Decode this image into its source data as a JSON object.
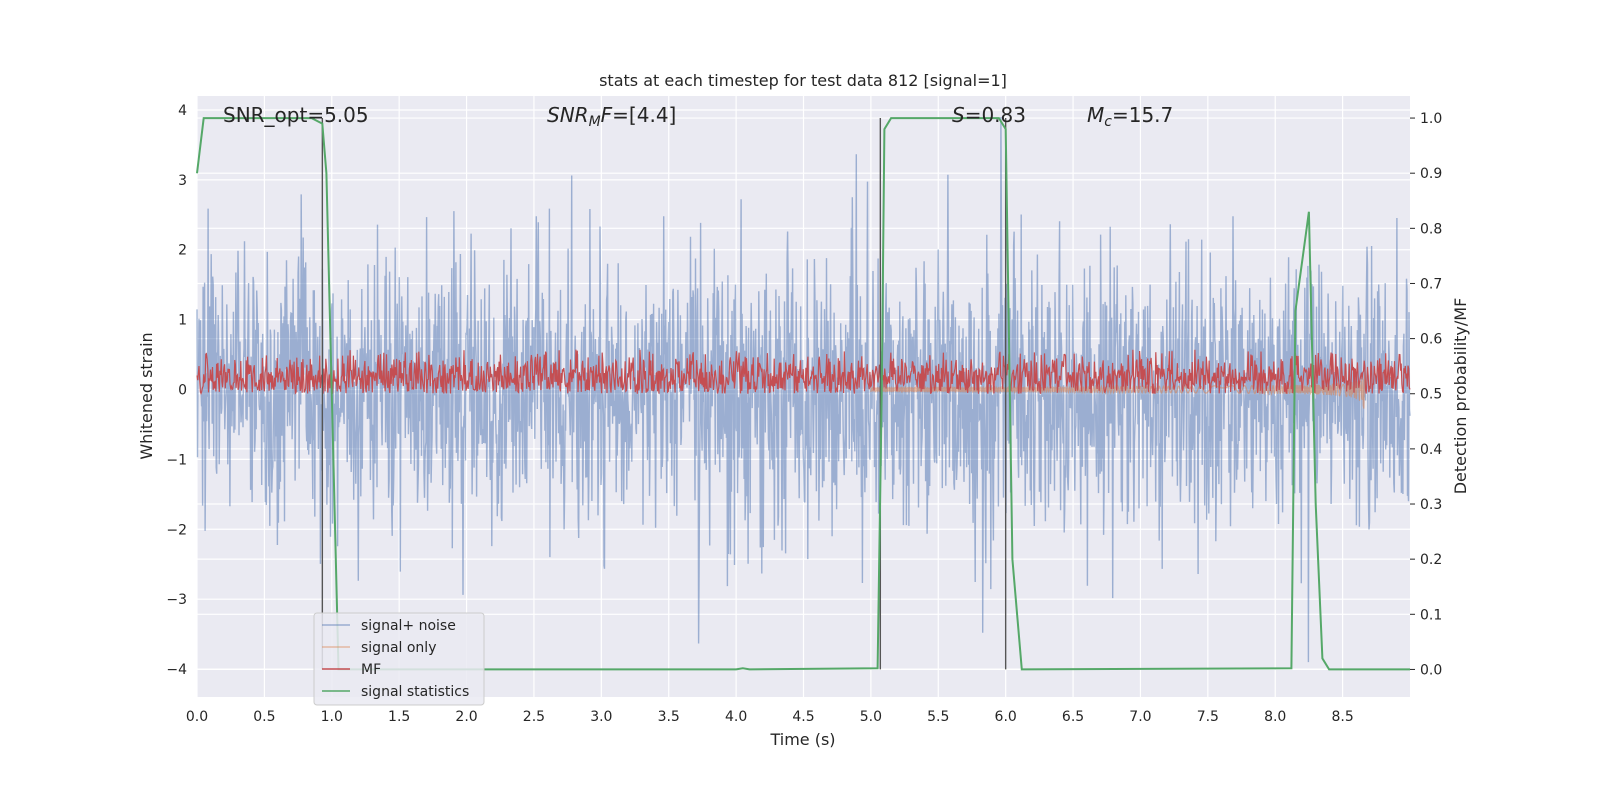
{
  "chart_data": {
    "type": "line",
    "title": "stats at each timestep for test data 812 [signal=1]",
    "xlabel": "Time (s)",
    "ylabel_left": "Whitened strain",
    "ylabel_right": "Detection probability/MF",
    "xlim": [
      0.0,
      9.0
    ],
    "ylim_left": [
      -4.4,
      4.2
    ],
    "ylim_right": [
      -0.05,
      1.04
    ],
    "x_ticks": [
      "0.0",
      "0.5",
      "1.0",
      "1.5",
      "2.0",
      "2.5",
      "3.0",
      "3.5",
      "4.0",
      "4.5",
      "5.0",
      "5.5",
      "6.0",
      "6.5",
      "7.0",
      "7.5",
      "8.0",
      "8.5"
    ],
    "y_left_ticks": [
      "−4",
      "−3",
      "−2",
      "−1",
      "0",
      "1",
      "2",
      "3",
      "4"
    ],
    "y_right_ticks": [
      "0.0",
      "0.1",
      "0.2",
      "0.3",
      "0.4",
      "0.5",
      "0.6",
      "0.7",
      "0.8",
      "0.9",
      "1.0"
    ],
    "grid": true,
    "legend_position": "lower-left",
    "colors": {
      "signal_noise": "#4c72b0",
      "signal_only": "#dd8452",
      "mf": "#c44e52",
      "statistics": "#55a868",
      "background": "#eaeaf2"
    },
    "annotations": {
      "snr_opt": "SNR_opt=5.05",
      "snr_mf": "=[4.4]",
      "s_value": "=0.83",
      "mc_value": "=15.7"
    },
    "series": [
      {
        "name": "signal+ noise",
        "axis": "left",
        "style": "noise",
        "amplitude_std": 1.0,
        "x_range": [
          0.0,
          9.0
        ]
      },
      {
        "name": "signal only",
        "axis": "left",
        "style": "chirp",
        "x_range": [
          5.0,
          8.67
        ],
        "peak_amplitude": 0.9
      },
      {
        "name": "MF",
        "axis": "right",
        "style": "noise-band",
        "center": 0.53,
        "band": [
          0.5,
          0.58
        ]
      },
      {
        "name": "signal statistics",
        "axis": "right",
        "x": [
          0.0,
          0.05,
          0.1,
          0.85,
          0.93,
          0.96,
          1.05,
          4.0,
          4.05,
          4.1,
          5.05,
          5.08,
          5.1,
          5.15,
          5.2,
          5.95,
          6.0,
          6.05,
          6.12,
          8.12,
          8.15,
          8.25,
          8.3,
          8.35,
          8.4,
          9.0
        ],
        "y": [
          0.9,
          1.0,
          1.0,
          1.0,
          0.99,
          0.9,
          0.0,
          0.0,
          0.002,
          0.0,
          0.002,
          0.5,
          0.98,
          1.0,
          1.0,
          1.0,
          0.98,
          0.2,
          0.0,
          0.002,
          0.65,
          0.83,
          0.3,
          0.02,
          0.0,
          0.0
        ]
      }
    ],
    "vertical_markers": [
      0.93,
      5.07,
      6.0
    ]
  },
  "legend": {
    "items": [
      "signal+ noise",
      "signal only",
      "MF",
      "signal statistics"
    ]
  }
}
